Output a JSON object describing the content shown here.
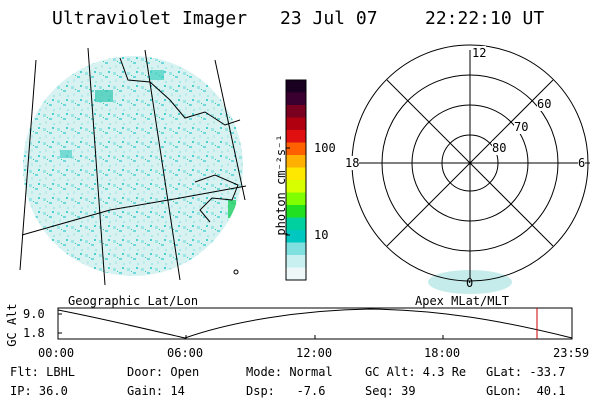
{
  "header": {
    "instrument": "Ultraviolet Imager",
    "date": "23 Jul 07",
    "time": "22:22:10 UT"
  },
  "colorbar": {
    "unit_label": "photon cm⁻²s⁻¹",
    "tick_labels": [
      "100",
      "10"
    ],
    "colors": [
      "#1a0020",
      "#3a0030",
      "#7a0020",
      "#b00010",
      "#e01010",
      "#ff6000",
      "#ffb000",
      "#ffe800",
      "#d8ff00",
      "#80ff00",
      "#20e020",
      "#00d0a0",
      "#00c8c0",
      "#80e0e0",
      "#c8f0f0",
      "#eef8f8"
    ]
  },
  "map_panels": {
    "left_title": "Geographic Lat/Lon",
    "right_title": "Apex MLat/MLT"
  },
  "polar_plot": {
    "mlt_labels": [
      "12",
      "18",
      "6",
      "0"
    ],
    "lat_labels": [
      "60",
      "70",
      "80"
    ]
  },
  "orbit_plot": {
    "ylabel": "GC Alt",
    "y_ticks": [
      "9.0",
      "1.8"
    ],
    "x_ticks": [
      "00:00",
      "06:00",
      "12:00",
      "18:00",
      "23:59"
    ],
    "marker_color": "#cc0000"
  },
  "status": {
    "row1": {
      "filter": "Flt: LBHL",
      "door": "Door: Open",
      "mode": "Mode: Normal",
      "gc_alt": "GC Alt: 4.3 Re",
      "glat": "GLat: -33.7"
    },
    "row2": {
      "ip": "IP: 36.0",
      "gain": "Gain: 14",
      "dsp": "Dsp:   -7.6",
      "seq": "Seq: 39",
      "glon": "GLon:  40.1"
    }
  }
}
